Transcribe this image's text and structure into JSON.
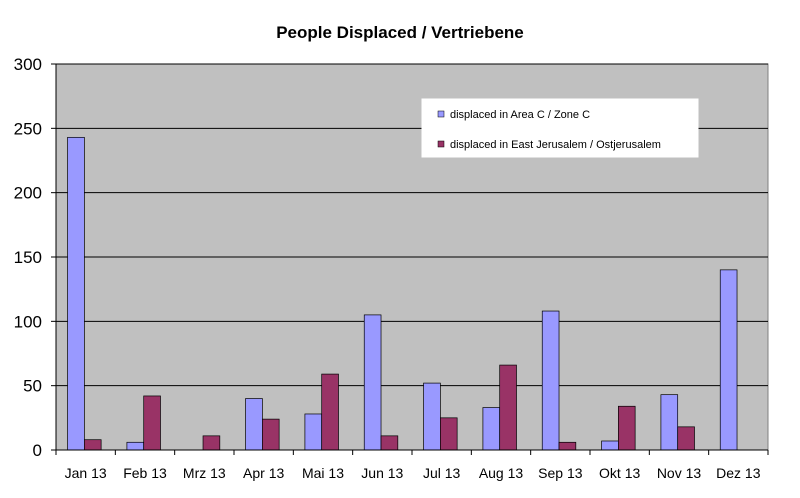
{
  "chart_data": {
    "type": "bar",
    "title": "People Displaced / Vertriebene",
    "xlabel": "",
    "ylabel": "",
    "ylim": [
      0,
      300
    ],
    "yticks": [
      0,
      50,
      100,
      150,
      200,
      250,
      300
    ],
    "categories": [
      "Jan 13",
      "Feb 13",
      "Mrz 13",
      "Apr 13",
      "Mai 13",
      "Jun 13",
      "Jul 13",
      "Aug 13",
      "Sep 13",
      "Okt 13",
      "Nov 13",
      "Dez 13"
    ],
    "series": [
      {
        "name": "displaced in Area C / Zone C",
        "color": "#9999ff",
        "values": [
          243,
          6,
          0,
          40,
          28,
          105,
          52,
          33,
          108,
          7,
          43,
          140
        ]
      },
      {
        "name": "displaced in East Jerusalem / Ostjerusalem",
        "color": "#993366",
        "values": [
          8,
          42,
          11,
          24,
          59,
          11,
          25,
          66,
          6,
          34,
          18,
          0
        ]
      }
    ],
    "grid": true,
    "legend_position": "top-right",
    "plot_background": "#c0c0c0"
  }
}
